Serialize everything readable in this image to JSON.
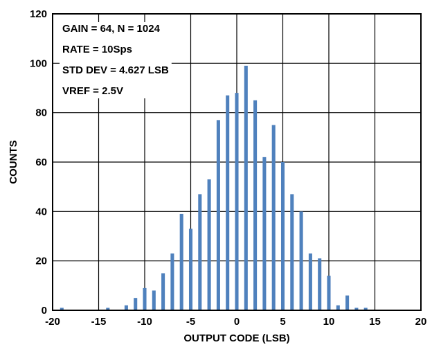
{
  "chart_data": {
    "type": "bar",
    "xlabel": "OUTPUT CODE (LSB)",
    "ylabel": "COUNTS",
    "xlim": [
      -20,
      20
    ],
    "ylim": [
      0,
      120
    ],
    "xticks": [
      "-20",
      "-15",
      "-10",
      "-5",
      "0",
      "5",
      "10",
      "15",
      "20"
    ],
    "yticks": [
      "0",
      "20",
      "40",
      "60",
      "80",
      "100",
      "120"
    ],
    "grid": true,
    "bar_color": "#4f81bd",
    "annotations": [
      "GAIN = 64, N = 1024",
      "RATE = 10Sps",
      "STD DEV = 4.627 LSB",
      "VREF = 2.5V"
    ],
    "x": [
      -19,
      -14,
      -12,
      -11,
      -10,
      -9,
      -8,
      -7,
      -6,
      -5,
      -4,
      -3,
      -2,
      -1,
      0,
      1,
      2,
      3,
      4,
      5,
      6,
      7,
      8,
      9,
      10,
      11,
      12,
      13,
      14
    ],
    "values": [
      1,
      1,
      2,
      5,
      9,
      8,
      15,
      23,
      39,
      33,
      47,
      53,
      77,
      87,
      88,
      99,
      85,
      62,
      75,
      60,
      47,
      40,
      23,
      21,
      14,
      2,
      6,
      1,
      1
    ]
  }
}
